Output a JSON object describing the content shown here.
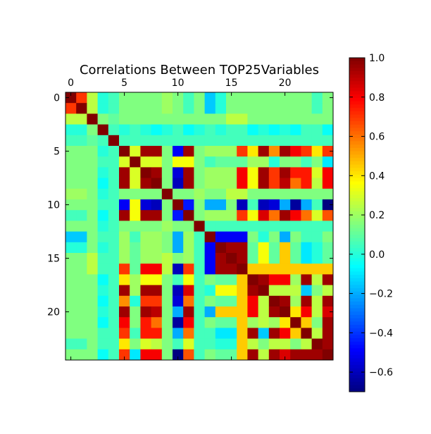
{
  "chart_data": {
    "type": "heatmap",
    "title": "Correlations Between TOP25Variables",
    "x_ticks": [
      0,
      5,
      10,
      15,
      20
    ],
    "y_ticks": [
      0,
      5,
      10,
      15,
      20
    ],
    "x_range": [
      -0.5,
      24.5
    ],
    "y_range": [
      -0.5,
      24.5
    ],
    "x_tick_position": "top",
    "colormap": "jet",
    "colorbar": {
      "vmin": -0.7,
      "vmax": 1.0,
      "ticks": [
        1.0,
        0.8,
        0.6,
        0.4,
        0.2,
        0.0,
        -0.2,
        -0.4,
        -0.6
      ],
      "tick_labels": [
        "1.0",
        "0.8",
        "0.6",
        "0.4",
        "0.2",
        "0.0",
        "−0.2",
        "−0.4",
        "−0.6"
      ]
    },
    "grid": false,
    "matrix": [
      [
        1.0,
        0.7,
        0.25,
        0.0,
        0.05,
        0.15,
        0.15,
        0.15,
        0.15,
        0.2,
        0.15,
        0.05,
        0.15,
        -0.15,
        0.0,
        0.15,
        0.15,
        0.15,
        0.15,
        0.15,
        0.15,
        0.15,
        0.15,
        0.05,
        0.15
      ],
      [
        0.7,
        1.0,
        0.25,
        0.0,
        0.05,
        0.15,
        0.15,
        0.15,
        0.15,
        0.2,
        0.15,
        0.05,
        0.15,
        -0.15,
        0.0,
        0.15,
        0.15,
        0.15,
        0.15,
        0.15,
        0.15,
        0.15,
        0.15,
        0.05,
        0.15
      ],
      [
        0.25,
        0.25,
        1.0,
        0.15,
        0.1,
        0.15,
        0.15,
        0.15,
        0.15,
        0.15,
        0.15,
        0.15,
        0.15,
        0.15,
        0.15,
        0.25,
        0.25,
        0.15,
        0.15,
        0.15,
        0.15,
        0.15,
        0.15,
        0.15,
        0.15
      ],
      [
        0.0,
        0.0,
        0.15,
        1.0,
        0.05,
        0.0,
        0.05,
        0.0,
        -0.05,
        0.0,
        0.05,
        -0.05,
        0.0,
        0.05,
        0.0,
        0.05,
        0.05,
        -0.05,
        0.0,
        -0.05,
        0.0,
        -0.05,
        0.05,
        0.05,
        -0.05
      ],
      [
        0.05,
        0.05,
        0.1,
        0.05,
        1.0,
        0.05,
        0.05,
        0.05,
        0.05,
        0.05,
        0.05,
        0.05,
        0.05,
        0.05,
        0.05,
        0.05,
        0.05,
        0.05,
        0.05,
        0.05,
        0.05,
        0.05,
        0.05,
        0.05,
        0.05
      ],
      [
        0.15,
        0.15,
        0.15,
        0.0,
        0.05,
        1.0,
        0.3,
        0.95,
        0.95,
        0.15,
        -0.5,
        0.95,
        0.15,
        0.2,
        0.2,
        0.2,
        0.7,
        0.4,
        0.95,
        0.55,
        0.95,
        0.8,
        0.7,
        0.4,
        0.7
      ],
      [
        0.15,
        0.15,
        0.15,
        0.05,
        0.05,
        0.3,
        1.0,
        0.3,
        0.3,
        0.15,
        0.35,
        0.35,
        0.15,
        0.05,
        0.1,
        0.1,
        0.1,
        0.2,
        0.2,
        0.0,
        0.15,
        0.15,
        0.05,
        0.15,
        -0.1
      ],
      [
        0.15,
        0.15,
        0.15,
        0.0,
        0.05,
        0.95,
        0.3,
        1.0,
        0.95,
        0.15,
        -0.55,
        0.95,
        0.15,
        0.2,
        0.2,
        0.2,
        0.8,
        0.35,
        0.95,
        0.7,
        0.95,
        0.75,
        0.75,
        0.3,
        0.8
      ],
      [
        0.15,
        0.15,
        0.15,
        -0.05,
        0.05,
        0.95,
        0.3,
        0.95,
        1.0,
        0.15,
        -0.6,
        0.95,
        0.15,
        0.2,
        0.2,
        0.2,
        0.8,
        0.35,
        0.95,
        0.7,
        0.9,
        0.6,
        0.75,
        0.25,
        0.8
      ],
      [
        0.2,
        0.2,
        0.15,
        0.0,
        0.05,
        0.15,
        0.15,
        0.15,
        0.15,
        1.0,
        0.15,
        0.15,
        0.2,
        0.15,
        0.15,
        0.25,
        0.25,
        0.15,
        0.15,
        0.15,
        0.15,
        0.15,
        0.15,
        0.15,
        0.15
      ],
      [
        0.15,
        0.15,
        0.15,
        0.05,
        0.05,
        -0.5,
        0.35,
        -0.55,
        -0.6,
        0.15,
        1.0,
        -0.45,
        0.15,
        -0.2,
        -0.2,
        0.15,
        -0.6,
        0.05,
        -0.6,
        -0.55,
        -0.2,
        -0.65,
        -0.2,
        0.05,
        -0.7
      ],
      [
        0.05,
        0.05,
        0.15,
        -0.05,
        0.05,
        0.95,
        0.35,
        0.95,
        0.95,
        0.15,
        -0.45,
        1.0,
        0.15,
        0.2,
        0.2,
        0.2,
        0.7,
        0.35,
        0.85,
        0.6,
        0.95,
        0.8,
        0.6,
        0.3,
        0.65
      ],
      [
        0.15,
        0.15,
        0.15,
        0.0,
        0.05,
        0.15,
        0.15,
        0.15,
        0.15,
        0.2,
        0.15,
        0.15,
        1.0,
        0.05,
        0.05,
        0.05,
        0.05,
        0.05,
        0.05,
        0.05,
        0.05,
        0.05,
        0.05,
        0.05,
        0.05
      ],
      [
        -0.15,
        -0.15,
        0.15,
        0.05,
        0.05,
        0.2,
        0.05,
        0.2,
        0.2,
        0.15,
        -0.2,
        0.2,
        0.05,
        1.0,
        -0.5,
        -0.5,
        -0.5,
        0.15,
        0.0,
        0.15,
        -0.2,
        0.15,
        0.05,
        0.05,
        0.15
      ],
      [
        0.0,
        0.0,
        0.15,
        0.0,
        0.05,
        0.2,
        0.1,
        0.2,
        0.2,
        0.15,
        -0.2,
        0.2,
        0.05,
        -0.5,
        1.0,
        0.95,
        0.95,
        0.1,
        0.35,
        0.1,
        0.45,
        0.1,
        -0.1,
        0.0,
        0.1
      ],
      [
        0.15,
        0.15,
        0.25,
        0.05,
        0.05,
        0.2,
        0.1,
        0.2,
        0.2,
        0.25,
        0.15,
        0.2,
        0.05,
        -0.5,
        0.95,
        1.0,
        0.95,
        0.1,
        0.35,
        0.1,
        0.45,
        0.1,
        -0.1,
        0.0,
        0.1
      ],
      [
        0.15,
        0.15,
        0.25,
        0.05,
        0.05,
        0.7,
        0.1,
        0.8,
        0.8,
        0.25,
        -0.6,
        0.7,
        0.05,
        -0.5,
        0.95,
        0.95,
        1.0,
        0.45,
        0.45,
        0.45,
        0.45,
        0.45,
        0.45,
        0.45,
        0.45
      ],
      [
        0.15,
        0.15,
        0.15,
        -0.05,
        0.05,
        0.4,
        0.2,
        0.35,
        0.35,
        0.15,
        0.05,
        0.35,
        0.05,
        0.15,
        0.1,
        0.1,
        0.45,
        1.0,
        0.95,
        0.8,
        0.8,
        0.2,
        0.95,
        0.25,
        0.95
      ],
      [
        0.15,
        0.15,
        0.15,
        0.0,
        0.05,
        0.95,
        0.2,
        0.95,
        0.95,
        0.15,
        -0.6,
        0.85,
        0.05,
        0.0,
        0.35,
        0.35,
        0.45,
        0.95,
        1.0,
        0.25,
        0.25,
        0.25,
        -0.15,
        0.15,
        0.25
      ],
      [
        0.15,
        0.15,
        0.15,
        -0.05,
        0.05,
        0.55,
        0.0,
        0.7,
        0.7,
        0.15,
        -0.55,
        0.6,
        0.05,
        0.15,
        0.1,
        0.1,
        0.45,
        0.8,
        0.25,
        1.0,
        0.95,
        0.2,
        0.95,
        0.25,
        0.95
      ],
      [
        0.15,
        0.15,
        0.15,
        0.0,
        0.05,
        0.95,
        0.15,
        0.95,
        0.9,
        0.15,
        -0.2,
        0.95,
        0.05,
        -0.2,
        0.45,
        0.45,
        0.45,
        0.8,
        0.25,
        0.95,
        1.0,
        0.4,
        0.8,
        0.25,
        0.85
      ],
      [
        0.15,
        0.15,
        0.15,
        -0.05,
        0.05,
        0.8,
        0.15,
        0.75,
        0.6,
        0.15,
        -0.65,
        0.8,
        0.05,
        0.15,
        0.1,
        0.1,
        0.45,
        0.2,
        0.25,
        0.2,
        0.4,
        1.0,
        0.45,
        0.15,
        0.95
      ],
      [
        0.15,
        0.15,
        0.15,
        0.05,
        0.05,
        0.7,
        0.05,
        0.75,
        0.75,
        0.15,
        -0.2,
        0.6,
        0.05,
        0.05,
        -0.1,
        -0.1,
        0.45,
        0.95,
        -0.15,
        0.95,
        0.8,
        0.45,
        1.0,
        0.25,
        0.95
      ],
      [
        0.05,
        0.05,
        0.15,
        0.05,
        0.05,
        0.4,
        0.15,
        0.3,
        0.25,
        0.15,
        0.05,
        0.3,
        0.05,
        0.05,
        0.0,
        0.0,
        0.45,
        0.25,
        0.15,
        0.25,
        0.25,
        0.15,
        0.25,
        1.0,
        0.95
      ],
      [
        0.15,
        0.15,
        0.15,
        -0.05,
        0.05,
        0.7,
        -0.1,
        0.8,
        0.8,
        0.15,
        -0.7,
        0.65,
        0.05,
        0.15,
        0.1,
        0.1,
        0.45,
        0.95,
        0.25,
        0.95,
        0.85,
        0.95,
        0.95,
        0.95,
        1.0
      ]
    ]
  }
}
